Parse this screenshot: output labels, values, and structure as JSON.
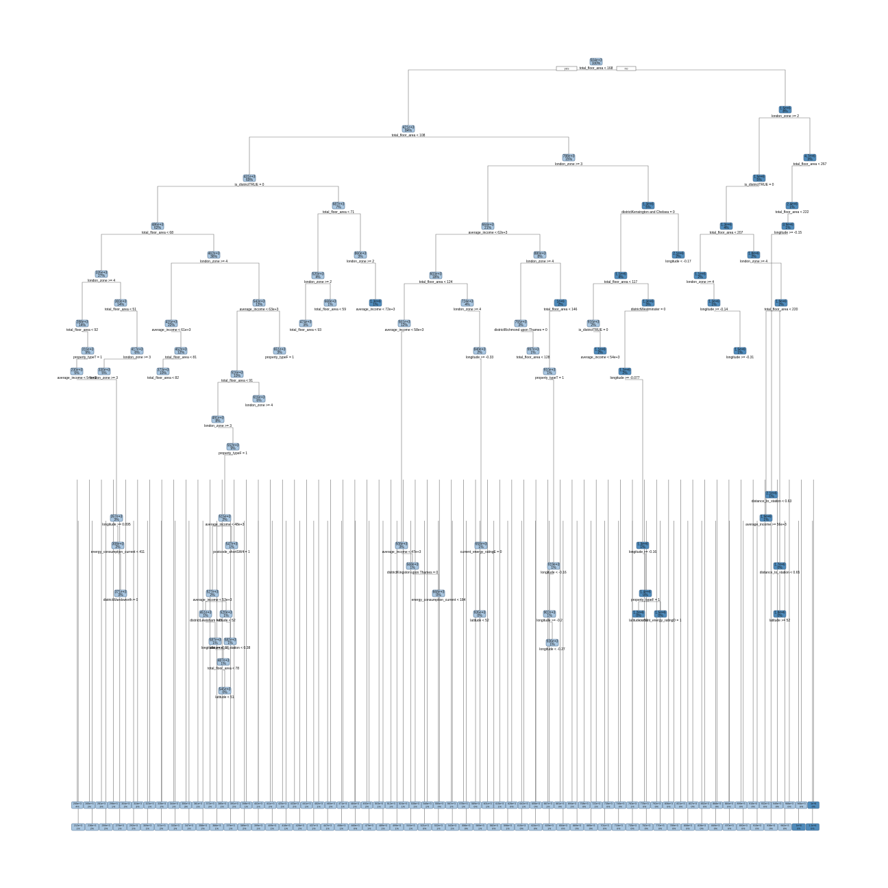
{
  "nodes": [
    {
      "id": "n1",
      "value": "504e+3",
      "pct": "100%",
      "split": "total_floor_area < 168"
    },
    {
      "id": "n2",
      "value": "421e+3",
      "pct": "84%",
      "split": "total_floor_area < 108"
    },
    {
      "id": "n3",
      "value": "1.5e+6",
      "pct": "8%",
      "split": "london_zone >= 2"
    },
    {
      "id": "n4",
      "value": "431e+3",
      "pct": "69%",
      "split": "is_districtTRUE = 0"
    },
    {
      "id": "n5",
      "value": "788e+3",
      "pct": "15%",
      "split": "london_zone >= 3"
    },
    {
      "id": "n6",
      "value": "1.5e+6",
      "pct": "5%",
      "split": "is_districtTRUE = 0"
    },
    {
      "id": "n7",
      "value": "4.7e+6",
      "pct": "3%",
      "split": "total_floor_area < 267"
    },
    {
      "id": "n8",
      "value": "486e+3",
      "pct": "62%",
      "split": "total_floor_area < 68"
    },
    {
      "id": "n9",
      "value": "687e+3",
      "pct": "7%",
      "split": "total_floor_area < 71"
    },
    {
      "id": "n10",
      "value": "664e+3",
      "pct": "21%",
      "split": "average_income < 62e+3"
    },
    {
      "id": "n11",
      "value": "1.3e+6",
      "pct": "5%",
      "split": "districtKensington and Chelsea = 0"
    },
    {
      "id": "n12",
      "value": "1.3e+6",
      "pct": "4%",
      "split": "total_floor_area < 207"
    },
    {
      "id": "n13",
      "value": "2.4e+6",
      "pct": "1%",
      "split": "total_floor_area < 222"
    },
    {
      "id": "n14",
      "value": "335e+3",
      "pct": "27%",
      "split": "london_zone >= 4"
    },
    {
      "id": "n15",
      "value": "462e+3",
      "pct": "36%",
      "split": "london_zone >= 4"
    },
    {
      "id": "n16",
      "value": "520e+3",
      "pct": "4%",
      "split": "london_zone >= 2"
    },
    {
      "id": "n17",
      "value": "860e+3",
      "pct": "3%",
      "split": "london_zone >= 2"
    },
    {
      "id": "n18",
      "value": "603e+3",
      "pct": "18%",
      "split": "total_floor_area < 124"
    },
    {
      "id": "n19",
      "value": "880e+3",
      "pct": "8%",
      "split": "london_zone >= 4"
    },
    {
      "id": "n20",
      "value": "2.1e+6",
      "pct": "2%",
      "split": "longitude < -0.17"
    },
    {
      "id": "n21",
      "value": "1.1e+6",
      "pct": "4%",
      "split": "total_floor_area < 117"
    },
    {
      "id": "n22",
      "value": "1.1e+6",
      "pct": "2%",
      "split": "london_zone >= 4"
    },
    {
      "id": "n23",
      "value": "1.8e+6",
      "pct": "2%",
      "split": "london_zone >= 4"
    },
    {
      "id": "n24",
      "value": "3.9e+6",
      "pct": "1%",
      "split": "longitude >= -0.15"
    },
    {
      "id": "n25",
      "value": "288e+3",
      "pct": "14%",
      "split": "total_floor_area < 92"
    },
    {
      "id": "n26",
      "value": "383e+3",
      "pct": "14%",
      "split": "total_floor_area < 51"
    },
    {
      "id": "n27",
      "value": "415e+3",
      "pct": "22%",
      "split": "average_income < 61e+3"
    },
    {
      "id": "n28",
      "value": "543e+3",
      "pct": "13%",
      "split": "average_income < 63e+3"
    },
    {
      "id": "n29",
      "value": "474e+3",
      "pct": "3%",
      "split": "total_floor_area < 93"
    },
    {
      "id": "n30",
      "value": "668e+3",
      "pct": "1%",
      "split": "total_floor_area < 59"
    },
    {
      "id": "n31",
      "value": "1.3e+6",
      "pct": "1%",
      "split": "average_income < 72e+3"
    },
    {
      "id": "n32",
      "value": "561e+3",
      "pct": "12%",
      "split": "average_income < 58e+3"
    },
    {
      "id": "n33",
      "value": "724e+3",
      "pct": "4%",
      "split": "london_zone >= 4"
    },
    {
      "id": "n34",
      "value": "755e+3",
      "pct": "3%",
      "split": "districtRichmond upon Thames = 0"
    },
    {
      "id": "n35",
      "value": "1e+6",
      "pct": "2%",
      "split": "total_floor_area < 146"
    },
    {
      "id": "n36",
      "value": "916e+3",
      "pct": "2%",
      "split": "is_districtTRUE = 0"
    },
    {
      "id": "n37",
      "value": "1.3e+6",
      "pct": "3%",
      "split": "districtWestminster = 0"
    },
    {
      "id": "n38",
      "value": "1.3e+6",
      "pct": "1%",
      "split": "longitude >= -0.14"
    },
    {
      "id": "n39",
      "value": "1.9e+6",
      "pct": "2%",
      "split": "total_floor_area < 220"
    },
    {
      "id": "n40",
      "value": "316e+3",
      "pct": "9%",
      "split": "property_typeT = 1"
    },
    {
      "id": "n41",
      "value": "417e+3",
      "pct": "6%",
      "split": "london_zone >= 3"
    },
    {
      "id": "n42",
      "value": "452e+3",
      "pct": "12%",
      "split": "total_floor_area < 81"
    },
    {
      "id": "n43",
      "value": "651e+3",
      "pct": "3%",
      "split": "property_typeF = 1"
    },
    {
      "id": "n44",
      "value": "516e+3",
      "pct": "10%",
      "split": "total_floor_area < 91"
    },
    {
      "id": "n45",
      "value": "616e+3",
      "pct": "6%",
      "split": "london_zone >= 4"
    },
    {
      "id": "n46",
      "value": "849e+3",
      "pct": "2%",
      "split": "longitude >= -0.33"
    },
    {
      "id": "n47",
      "value": "997e+3",
      "pct": "1%",
      "split": "total_floor_area < 128"
    },
    {
      "id": "n48",
      "value": "910e+3",
      "pct": "1%",
      "split": "property_typeT = 1"
    },
    {
      "id": "n49",
      "value": "1.1e+6",
      "pct": "2%",
      "split": "average_income < 54e+3"
    },
    {
      "id": "n50",
      "value": "1.2e+6",
      "pct": "2%",
      "split": "longitude >= -0.077"
    },
    {
      "id": "n51",
      "value": "1.5e+6",
      "pct": "1%",
      "split": "longitude >= -0.31"
    },
    {
      "id": "n52",
      "value": "230e+3",
      "pct": "5%",
      "split": "average_income < 54e+3"
    },
    {
      "id": "n53",
      "value": "330e+3",
      "pct": "5%",
      "split": "london_zone >= 3"
    },
    {
      "id": "n54",
      "value": "373e+3",
      "pct": "10%",
      "split": "total_floor_area < 82"
    },
    {
      "id": "n55",
      "value": "491e+3",
      "pct": "8%",
      "split": "london_zone >= 3"
    },
    {
      "id": "n56",
      "value": "552e+3",
      "pct": "9%",
      "split": "property_typeF = 1"
    },
    {
      "id": "n57",
      "value": "515e+3",
      "pct": "2%",
      "split": "average_income < 48e+3"
    },
    {
      "id": "n58",
      "value": "547e+3",
      "pct": "1%",
      "split": "postcode_shortSW4 = 1"
    },
    {
      "id": "n59",
      "value": "527e+3",
      "pct": "2%",
      "split": "average_income < 53e+3"
    },
    {
      "id": "n60",
      "value": "451e+3",
      "pct": "1%",
      "split": "districtLewisham = 0"
    },
    {
      "id": "n61",
      "value": "520e+3",
      "pct": "1%",
      "split": "latitude < 52"
    },
    {
      "id": "n62",
      "value": "587e+3",
      "pct": "1%",
      "split": "longitude >= -0.15"
    },
    {
      "id": "n63",
      "value": "582e+3",
      "pct": "1%",
      "split": "distance_to_station < 0.38"
    },
    {
      "id": "n64",
      "value": "487e+3",
      "pct": "1%",
      "split": "total_floor_area < 78"
    },
    {
      "id": "n65",
      "value": "545e+3",
      "pct": "0%",
      "split": "latitude < 51"
    },
    {
      "id": "n66",
      "value": "357e+3",
      "pct": "3%",
      "split": "longitude >= 0.095"
    },
    {
      "id": "n67",
      "value": "308e+3",
      "pct": "2%",
      "split": "energy_consumption_current < 411"
    },
    {
      "id": "n68",
      "value": "371e+3",
      "pct": "3%",
      "split": "districtWandsworth = 0"
    },
    {
      "id": "n69",
      "value": "658e+3",
      "pct": "1%",
      "split": "current_energy_ratingE = 0"
    },
    {
      "id": "n70",
      "value": "508e+3",
      "pct": "3%",
      "split": "average_income < 47e+3"
    },
    {
      "id": "n71",
      "value": "568e+3",
      "pct": "1%",
      "split": "districtKingston upon Thames = 0"
    },
    {
      "id": "n72",
      "value": "668e+3",
      "pct": "0%",
      "split": "energy_consumption_current < 184"
    },
    {
      "id": "n73",
      "value": "935e+3",
      "pct": "0%",
      "split": "latitude < 52"
    },
    {
      "id": "n74",
      "value": "919e+3",
      "pct": "1%",
      "split": "longitude < -0.16"
    },
    {
      "id": "n75",
      "value": "902e+3",
      "pct": "1%",
      "split": "longitude >= -0.2"
    },
    {
      "id": "n76",
      "value": "936e+3",
      "pct": "1%",
      "split": "longitude < -0.27"
    },
    {
      "id": "n77",
      "value": "1.3e+6",
      "pct": "1%",
      "split": "longitude >= -0.16"
    },
    {
      "id": "n78",
      "value": "1.4e+6",
      "pct": "0%",
      "split": "property_typeF = 1"
    },
    {
      "id": "n79",
      "value": "1.2e+6",
      "pct": "0%",
      "split": "latitude < 51"
    },
    {
      "id": "n80",
      "value": "1.5e+6",
      "pct": "0%",
      "split": "current_energy_ratingD = 1"
    },
    {
      "id": "n81",
      "value": "1.7e+6",
      "pct": "0%",
      "split": "distance_to_station < 0.65"
    },
    {
      "id": "n82",
      "value": "1.8e+6",
      "pct": "0%",
      "split": "latitude >= 52"
    },
    {
      "id": "n83",
      "value": "1.9e+6",
      "pct": "1%",
      "split": "average_income >= 56e+3"
    },
    {
      "id": "n84",
      "value": "2.1e+6",
      "pct": "1%",
      "split": "distance_to_station < 0.63"
    }
  ],
  "yes_label": "yes",
  "no_label": "no",
  "leaves_row1": [
    "255e+3",
    "4%",
    "265e+3",
    "2%",
    "281e+3",
    "3%",
    "296e+3",
    "1%",
    "304e+3",
    "2%",
    "318e+3",
    "3%",
    "323e+3",
    "1%",
    "335e+3",
    "2%",
    "344e+3",
    "1%",
    "350e+3",
    "3%",
    "361e+3",
    "1%",
    "372e+3",
    "2%",
    "380e+3",
    "1%",
    "391e+3",
    "2%",
    "398e+3",
    "1%",
    "402e+3",
    "1%",
    "411e+3",
    "2%",
    "420e+3",
    "1%",
    "433e+3",
    "2%",
    "441e+3",
    "1%",
    "452e+3",
    "1%",
    "460e+3",
    "2%",
    "471e+3",
    "1%",
    "484e+3",
    "1%",
    "492e+3",
    "2%",
    "503e+3",
    "1%",
    "512e+3",
    "1%",
    "524e+3",
    "1%",
    "536e+3",
    "1%",
    "548e+3",
    "1%",
    "555e+3",
    "0%",
    "567e+3",
    "1%",
    "578e+3",
    "1%",
    "589e+3",
    "0%",
    "601e+3",
    "1%",
    "615e+3",
    "1%",
    "628e+3",
    "0%",
    "642e+3",
    "1%",
    "655e+3",
    "0%",
    "667e+3",
    "1%",
    "681e+3",
    "0%",
    "694e+3",
    "1%",
    "708e+3",
    "0%",
    "722e+3",
    "1%",
    "735e+3",
    "0%",
    "748e+3",
    "0%",
    "763e+3",
    "1%",
    "778e+3",
    "0%",
    "792e+3",
    "0%",
    "806e+3",
    "0%",
    "821e+3",
    "0%",
    "837e+3",
    "0%",
    "852e+3",
    "0%",
    "868e+3",
    "0%",
    "884e+3",
    "0%",
    "899e+3",
    "0%",
    "915e+3",
    "0%",
    "932e+3",
    "0%",
    "949e+3",
    "0%",
    "966e+3",
    "0%",
    "984e+3",
    "0%",
    "1e+6",
    "0%"
  ],
  "leaves_row2": [
    "212e+3",
    "1%",
    "236e+3",
    "2%",
    "259e+3",
    "2%",
    "278e+3",
    "1%",
    "292e+3",
    "2%",
    "309e+3",
    "1%",
    "321e+3",
    "2%",
    "333e+3",
    "1%",
    "347e+3",
    "1%",
    "358e+3",
    "2%",
    "366e+3",
    "1%",
    "379e+3",
    "1%",
    "389e+3",
    "2%",
    "399e+3",
    "1%",
    "409e+3",
    "1%",
    "418e+3",
    "1%",
    "428e+3",
    "2%",
    "437e+3",
    "1%",
    "447e+3",
    "1%",
    "458e+3",
    "1%",
    "469e+3",
    "0%",
    "479e+3",
    "1%",
    "489e+3",
    "1%",
    "499e+3",
    "1%",
    "510e+3",
    "1%",
    "521e+3",
    "0%",
    "532e+3",
    "1%",
    "543e+3",
    "1%",
    "556e+3",
    "0%",
    "569e+3",
    "1%",
    "582e+3",
    "0%",
    "596e+3",
    "1%",
    "610e+3",
    "0%",
    "624e+3",
    "0%",
    "639e+3",
    "1%",
    "654e+3",
    "0%",
    "669e+3",
    "0%",
    "685e+3",
    "0%",
    "701e+3",
    "0%",
    "718e+3",
    "0%",
    "735e+3",
    "0%",
    "752e+3",
    "0%",
    "770e+3",
    "0%",
    "789e+3",
    "0%",
    "808e+3",
    "0%",
    "828e+3",
    "0%",
    "849e+3",
    "0%",
    "870e+3",
    "0%",
    "892e+3",
    "0%",
    "915e+3",
    "0%",
    "938e+3",
    "0%",
    "962e+3",
    "0%",
    "1e+6",
    "0%",
    "1.1e+6",
    "0%"
  ],
  "colors": {
    "light": "#f3f7fb",
    "mid": "#a9c6e0",
    "dark": "#4f8bbb",
    "edge": "#6f6f6f"
  }
}
